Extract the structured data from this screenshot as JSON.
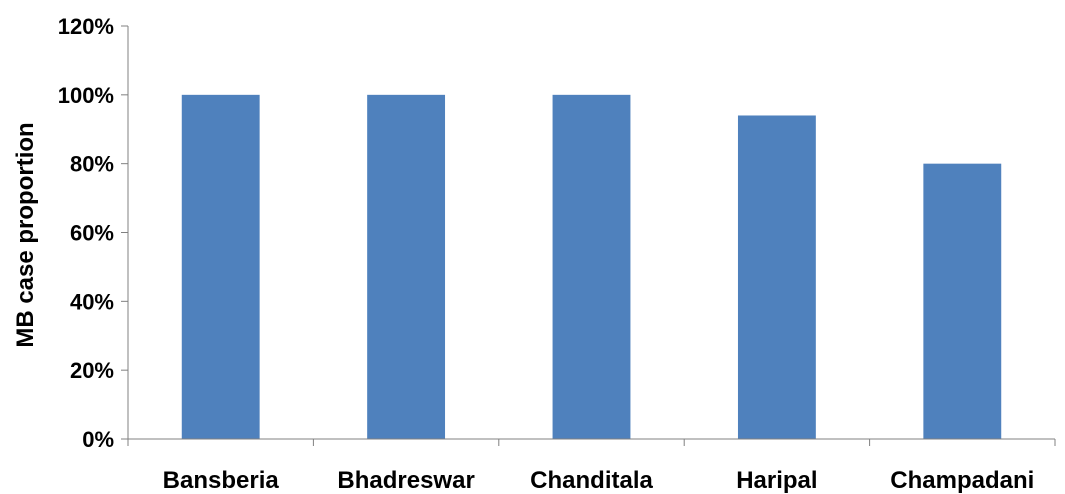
{
  "chart_data": {
    "type": "bar",
    "title": "",
    "xlabel": "",
    "ylabel": "MB case proportion",
    "categories": [
      "Bansberia",
      "Bhadreswar",
      "Chanditala",
      "Haripal",
      "Champadani"
    ],
    "values": [
      100,
      100,
      100,
      94,
      80
    ],
    "ylim": [
      0,
      120
    ],
    "yticks": [
      0,
      20,
      40,
      60,
      80,
      100,
      120
    ],
    "ytick_labels": [
      "0%",
      "20%",
      "40%",
      "60%",
      "80%",
      "100%",
      "120%"
    ],
    "grid": false,
    "legend": "none",
    "bar_color": "#4F81BD"
  }
}
